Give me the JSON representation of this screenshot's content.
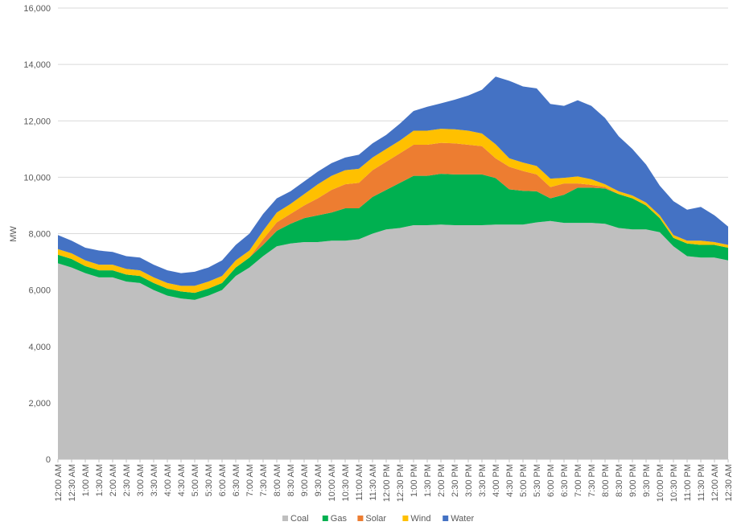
{
  "chart_data": {
    "type": "area",
    "stacked": true,
    "ylabel": "MW",
    "ylim": [
      0,
      16000
    ],
    "yticks": [
      0,
      2000,
      4000,
      6000,
      8000,
      10000,
      12000,
      14000,
      16000
    ],
    "ytick_labels": [
      "0",
      "2,000",
      "4,000",
      "6,000",
      "8,000",
      "10,000",
      "12,000",
      "14,000",
      "16,000"
    ],
    "grid": "horizontal",
    "legend": "bottom",
    "x": [
      "12:00 AM",
      "12:30 AM",
      "1:00 AM",
      "1:30 AM",
      "2:00 AM",
      "2:30 AM",
      "3:00 AM",
      "3:30 AM",
      "4:00 AM",
      "4:30 AM",
      "5:00 AM",
      "5:30 AM",
      "6:00 AM",
      "6:30 AM",
      "7:00 AM",
      "7:30 AM",
      "8:00 AM",
      "8:30 AM",
      "9:00 AM",
      "9:30 AM",
      "10:00 AM",
      "10:30 AM",
      "11:00 AM",
      "11:30 AM",
      "12:00 PM",
      "12:30 PM",
      "1:00 PM",
      "1:30 PM",
      "2:00 PM",
      "2:30 PM",
      "3:00 PM",
      "3:30 PM",
      "4:00 PM",
      "4:30 PM",
      "5:00 PM",
      "5:30 PM",
      "6:00 PM",
      "6:30 PM",
      "7:00 PM",
      "7:30 PM",
      "8:00 PM",
      "8:30 PM",
      "9:00 PM",
      "9:30 PM",
      "10:00 PM",
      "10:30 PM",
      "11:00 PM",
      "11:30 PM",
      "12:00 AM",
      "12:30 AM"
    ],
    "series": [
      {
        "name": "Coal",
        "color": "#bfbfbf",
        "values": [
          6950,
          6800,
          6600,
          6450,
          6450,
          6300,
          6250,
          6000,
          5800,
          5700,
          5650,
          5800,
          6000,
          6500,
          6800,
          7200,
          7550,
          7650,
          7700,
          7700,
          7750,
          7750,
          7800,
          8000,
          8150,
          8200,
          8300,
          8300,
          8320,
          8300,
          8300,
          8300,
          8320,
          8320,
          8320,
          8400,
          8450,
          8380,
          8380,
          8380,
          8350,
          8200,
          8150,
          8150,
          8050,
          7550,
          7200,
          7150,
          7150,
          7050
        ]
      },
      {
        "name": "Gas",
        "color": "#00b050",
        "values": [
          300,
          300,
          250,
          250,
          250,
          250,
          250,
          250,
          250,
          250,
          250,
          250,
          250,
          300,
          350,
          400,
          550,
          700,
          850,
          950,
          1000,
          1150,
          1100,
          1300,
          1400,
          1600,
          1750,
          1750,
          1800,
          1800,
          1800,
          1800,
          1650,
          1250,
          1200,
          1100,
          800,
          1000,
          1250,
          1250,
          1250,
          1200,
          1100,
          850,
          500,
          300,
          450,
          450,
          450,
          450
        ]
      },
      {
        "name": "Solar",
        "color": "#ed7d31",
        "values": [
          0,
          0,
          0,
          0,
          0,
          0,
          0,
          0,
          0,
          0,
          0,
          0,
          0,
          0,
          0,
          200,
          300,
          350,
          450,
          600,
          800,
          850,
          900,
          950,
          1000,
          1050,
          1100,
          1100,
          1100,
          1100,
          1050,
          1000,
          700,
          800,
          700,
          600,
          400,
          400,
          150,
          100,
          50,
          0,
          0,
          0,
          0,
          0,
          0,
          0,
          0,
          0
        ]
      },
      {
        "name": "Wind",
        "color": "#ffc000",
        "values": [
          200,
          200,
          200,
          200,
          200,
          200,
          200,
          200,
          200,
          200,
          250,
          250,
          250,
          250,
          250,
          300,
          350,
          350,
          400,
          500,
          500,
          500,
          500,
          450,
          450,
          450,
          500,
          500,
          500,
          500,
          500,
          450,
          500,
          300,
          300,
          300,
          300,
          200,
          250,
          200,
          100,
          100,
          100,
          100,
          100,
          100,
          100,
          150,
          100,
          100
        ]
      },
      {
        "name": "Water",
        "color": "#4472c4",
        "values": [
          500,
          450,
          450,
          500,
          450,
          450,
          450,
          450,
          450,
          450,
          500,
          500,
          550,
          550,
          600,
          600,
          500,
          450,
          450,
          450,
          450,
          450,
          500,
          500,
          500,
          600,
          700,
          850,
          900,
          1050,
          1250,
          1550,
          2400,
          2750,
          2700,
          2750,
          2650,
          2550,
          2700,
          2600,
          2350,
          1950,
          1650,
          1350,
          1050,
          1200,
          1100,
          1200,
          950,
          650
        ]
      }
    ]
  }
}
